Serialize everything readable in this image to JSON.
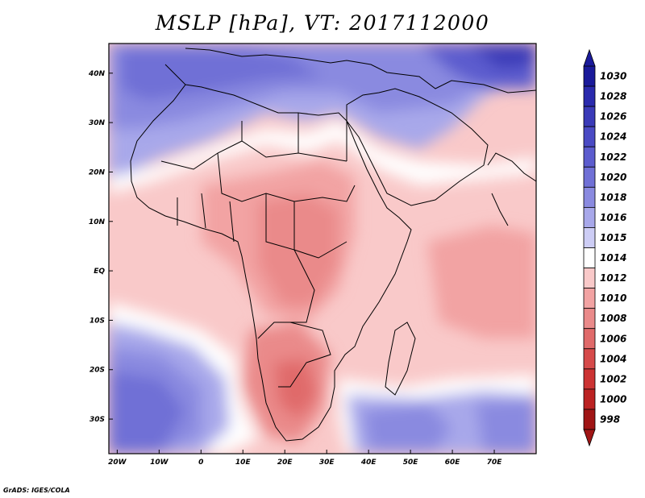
{
  "title": "MSLP [hPa], VT: 2017112000",
  "credit": "GrADS: IGES/COLA",
  "chart_data": {
    "type": "heatmap",
    "variable": "MSLP",
    "units": "hPa",
    "valid_time": "2017112000",
    "lon_range": [
      -22,
      80
    ],
    "lat_range": [
      -37,
      46
    ],
    "x_ticks": [
      "20W",
      "10W",
      "0",
      "10E",
      "20E",
      "30E",
      "40E",
      "50E",
      "60E",
      "70E"
    ],
    "x_tick_values": [
      -20,
      -10,
      0,
      10,
      20,
      30,
      40,
      50,
      60,
      70
    ],
    "y_ticks": [
      "40N",
      "30N",
      "20N",
      "10N",
      "EQ",
      "10S",
      "20S",
      "30S"
    ],
    "y_tick_values": [
      40,
      30,
      20,
      10,
      0,
      -10,
      -20,
      -30
    ],
    "colorbar": {
      "labels": [
        "1030",
        "1028",
        "1026",
        "1024",
        "1022",
        "1020",
        "1018",
        "1016",
        "1015",
        "1014",
        "1012",
        "1010",
        "1008",
        "1006",
        "1004",
        "1002",
        "1000",
        "998"
      ],
      "colors": [
        "#1a1a9a",
        "#2a2aad",
        "#3a3ab8",
        "#4a4ac4",
        "#5c5cce",
        "#7070d6",
        "#8a8ae0",
        "#a8a8ea",
        "#cdcdf5",
        "#ffffff",
        "#f9c9c9",
        "#f2a3a3",
        "#ea8a8a",
        "#e06a6a",
        "#d64a4a",
        "#cc3333",
        "#bb2222",
        "#a01515"
      ]
    }
  }
}
